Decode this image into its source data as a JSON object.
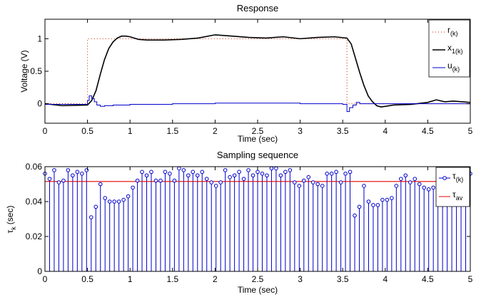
{
  "chart_data": [
    {
      "type": "line",
      "title": "Response",
      "xlabel": "Time (sec)",
      "ylabel": "Voltage (V)",
      "xlim": [
        0,
        5
      ],
      "ylim": [
        -0.3,
        1.3
      ],
      "xticks": [
        "0",
        "0.5",
        "1",
        "1.5",
        "2",
        "2.5",
        "3",
        "3.5",
        "4",
        "4.5",
        "5"
      ],
      "yticks": [
        "0",
        "0.5",
        "1"
      ],
      "grid": false,
      "legend": "top-right",
      "series": [
        {
          "name": "r",
          "name_sub": "(k)",
          "style": "dotted",
          "color": "#cc2200",
          "x": [
            0,
            0.5,
            0.5,
            3.55,
            3.55,
            5
          ],
          "y": [
            0,
            0,
            1,
            1,
            0,
            0
          ]
        },
        {
          "name": "x",
          "name_sub": "1(k)",
          "style": "solid",
          "color": "#000000",
          "x": [
            0,
            0.2,
            0.5,
            0.55,
            0.6,
            0.65,
            0.7,
            0.75,
            0.8,
            0.85,
            0.9,
            0.95,
            1.0,
            1.05,
            1.1,
            1.2,
            1.4,
            1.6,
            1.8,
            2.0,
            2.2,
            2.4,
            2.6,
            2.8,
            3.0,
            3.2,
            3.4,
            3.55,
            3.6,
            3.65,
            3.7,
            3.75,
            3.8,
            3.85,
            3.9,
            3.95,
            4.0,
            4.1,
            4.3,
            4.5,
            4.6,
            4.7,
            4.8,
            5.0
          ],
          "y": [
            0,
            -0.03,
            -0.02,
            0.05,
            0.2,
            0.45,
            0.68,
            0.85,
            0.95,
            1.01,
            1.04,
            1.04,
            1.03,
            1.01,
            0.99,
            0.98,
            0.98,
            0.99,
            1.01,
            1.06,
            1.04,
            1.02,
            1.01,
            1.03,
            1.0,
            1.02,
            1.03,
            1.01,
            0.92,
            0.7,
            0.48,
            0.28,
            0.12,
            0.03,
            -0.03,
            -0.05,
            -0.04,
            -0.02,
            -0.01,
            0.02,
            0.06,
            0.03,
            0.04,
            0.02
          ]
        },
        {
          "name": "u",
          "name_sub": "(k)",
          "style": "step",
          "color": "#0000cc",
          "x": [
            0,
            0.5,
            0.52,
            0.55,
            0.58,
            0.61,
            0.65,
            0.7,
            0.8,
            1.0,
            1.5,
            2.0,
            2.5,
            3.0,
            3.4,
            3.5,
            3.55,
            3.58,
            3.62,
            3.66,
            3.7,
            3.8,
            4.0,
            4.5,
            5.0
          ],
          "y": [
            -0.01,
            0.05,
            0.12,
            0.08,
            0.03,
            -0.02,
            -0.04,
            -0.03,
            -0.02,
            -0.01,
            0.0,
            0.01,
            0.01,
            0.0,
            0.0,
            -0.01,
            -0.12,
            -0.06,
            -0.02,
            0.02,
            0.0,
            0.0,
            0.0,
            0.0,
            0.01
          ]
        }
      ]
    },
    {
      "type": "stem",
      "title": "Sampling sequence",
      "xlabel": "Time (sec)",
      "ylabel": "τ",
      "ylabel_sub": "k",
      "ylabel_suffix": "(sec)",
      "xlim": [
        0,
        5
      ],
      "ylim": [
        0,
        0.06
      ],
      "xticks": [
        "0",
        "0.5",
        "1",
        "1.5",
        "2",
        "2.5",
        "3",
        "3.5",
        "4",
        "4.5",
        "5"
      ],
      "yticks": [
        "0",
        "0.02",
        "0.04",
        "0.06"
      ],
      "grid": false,
      "legend": "top-right",
      "series": [
        {
          "name": "τ",
          "name_sub": "(k)",
          "color": "#0000cc",
          "y": [
            0.056,
            0.053,
            0.058,
            0.051,
            0.052,
            0.058,
            0.055,
            0.057,
            0.056,
            0.058,
            0.031,
            0.037,
            0.05,
            0.042,
            0.04,
            0.04,
            0.04,
            0.041,
            0.043,
            0.048,
            0.052,
            0.057,
            0.055,
            0.057,
            0.052,
            0.052,
            0.057,
            0.056,
            0.052,
            0.059,
            0.058,
            0.055,
            0.057,
            0.055,
            0.057,
            0.053,
            0.051,
            0.049,
            0.051,
            0.058,
            0.054,
            0.055,
            0.057,
            0.053,
            0.058,
            0.055,
            0.057,
            0.056,
            0.055,
            0.059,
            0.059,
            0.055,
            0.057,
            0.058,
            0.051,
            0.049,
            0.052,
            0.054,
            0.051,
            0.05,
            0.049,
            0.056,
            0.056,
            0.057,
            0.051,
            0.056,
            0.057,
            0.032,
            0.037,
            0.049,
            0.04,
            0.038,
            0.038,
            0.041,
            0.041,
            0.042,
            0.049,
            0.053,
            0.055,
            0.051,
            0.053,
            0.05,
            0.048,
            0.047,
            0.048,
            0.055,
            0.055,
            0.057,
            0.05,
            0.051,
            0.055,
            0.057,
            0.056
          ]
        },
        {
          "name": "τ",
          "name_sub": "av",
          "color": "#e00000",
          "y": [
            0.0515
          ]
        }
      ]
    }
  ]
}
